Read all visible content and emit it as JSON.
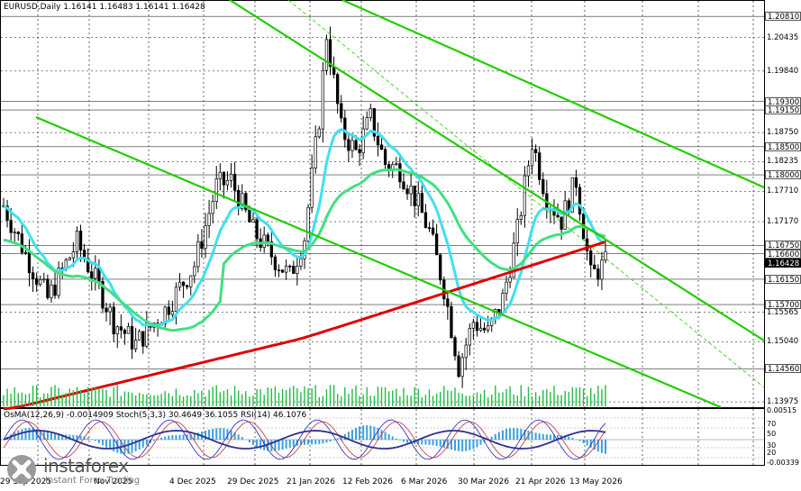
{
  "header": {
    "symbol_info": "EURUSD,Daily  1.16141 1.16483 1.16141 1.16428"
  },
  "indicator": {
    "title": "OsMA(12,26,9) -0.0014909  Stoch(5,3,3) 30.4649 36.1055  RSI(14) 46.1076",
    "axis_labels": [
      "0.00515",
      "70",
      "50",
      "30",
      "20",
      "-0.00339"
    ]
  },
  "price_axis": [
    {
      "value": "1.20810",
      "style": "boxed"
    },
    {
      "value": "1.20435",
      "style": "plain"
    },
    {
      "value": "1.19840",
      "style": "plain"
    },
    {
      "value": "1.19300",
      "style": "boxed"
    },
    {
      "value": "1.19150",
      "style": "boxed"
    },
    {
      "value": "1.18750",
      "style": "plain"
    },
    {
      "value": "1.18500",
      "style": "boxed"
    },
    {
      "value": "1.18235",
      "style": "plain"
    },
    {
      "value": "1.18000",
      "style": "boxed"
    },
    {
      "value": "1.17710",
      "style": "plain"
    },
    {
      "value": "1.17170",
      "style": "plain"
    },
    {
      "value": "1.16750",
      "style": "boxed"
    },
    {
      "value": "1.16600",
      "style": "boxed"
    },
    {
      "value": "1.16428",
      "style": "current"
    },
    {
      "value": "1.16150",
      "style": "boxed"
    },
    {
      "value": "1.15700",
      "style": "boxed"
    },
    {
      "value": "1.15565",
      "style": "plain"
    },
    {
      "value": "1.15040",
      "style": "plain"
    },
    {
      "value": "1.14560",
      "style": "boxed"
    },
    {
      "value": "1.13975",
      "style": "plain"
    }
  ],
  "time_axis": [
    "29 Sep 2025",
    "Nov 2025",
    "4 Dec 2025",
    "29 Dec 2025",
    "21 Jan 2026",
    "12 Feb 2026",
    "6 Mar 2026",
    "30 Mar 2026",
    "21 Apr 2026",
    "13 May 2026"
  ],
  "logo": {
    "name": "instaforex",
    "tagline": "Instant Forex Trading"
  },
  "colors": {
    "candles": "#000000",
    "ema_fast": "#40e0f0",
    "ema_mid": "#40e080",
    "ema_slow": "#e00000",
    "channel": "#22cc00",
    "volume": "#22bb44",
    "osma": "#3aa0e0",
    "stoch_main": "#2020c0",
    "stoch_signal": "#c03030",
    "rsi": "#303090"
  },
  "icons": [
    "instaforex-logo-icon"
  ]
}
